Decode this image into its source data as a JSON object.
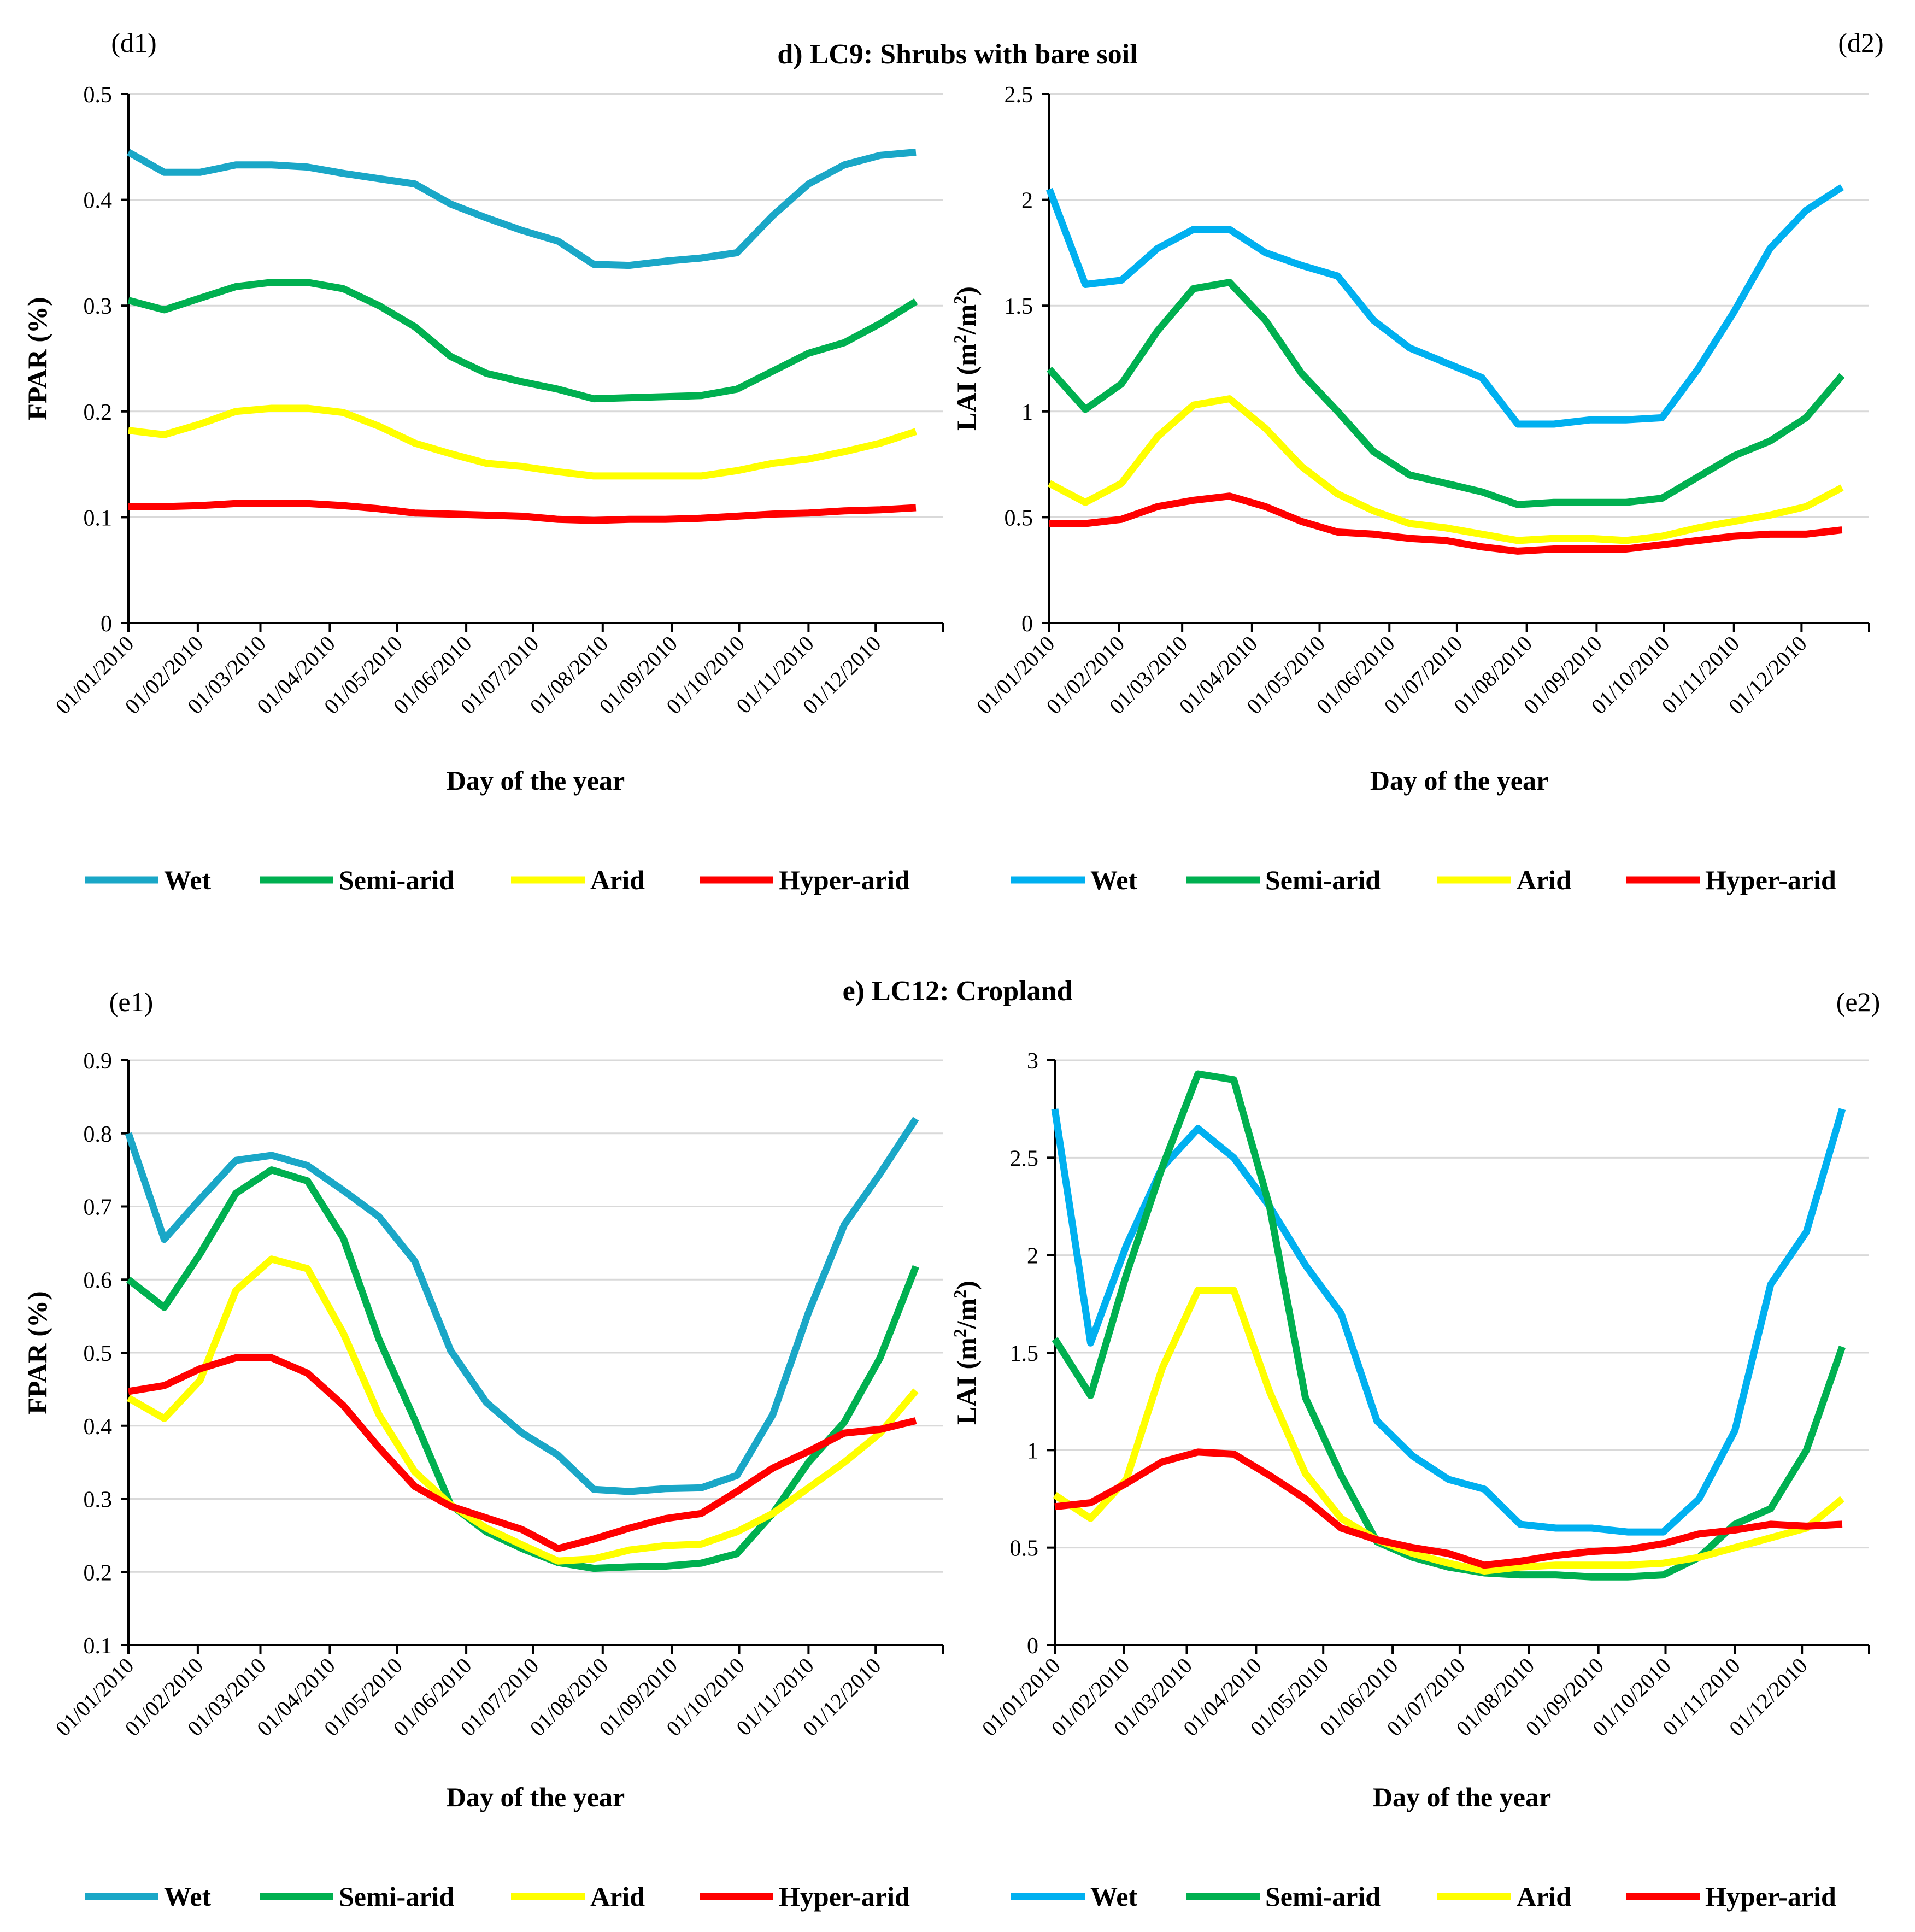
{
  "sections": [
    {
      "title": "d) LC9: Shrubs with bare soil"
    },
    {
      "title": "e) LC12: Cropland"
    }
  ],
  "legend_labels": [
    "Wet",
    "Semi-arid",
    "Arid",
    "Hyper-arid"
  ],
  "chart_data": [
    {
      "id": "d1",
      "panel_label": "(d1)",
      "type": "line",
      "xlabel": "Day of the year",
      "ylabel": "FPAR (%)",
      "ylim": [
        0,
        0.5
      ],
      "yticks": [
        0,
        0.1,
        0.2,
        0.3,
        0.4,
        0.5
      ],
      "ytick_labels": [
        "0",
        "0.1",
        "0.2",
        "0.3",
        "0.4",
        "0.5"
      ],
      "xtick_labels": [
        "01/01/2010",
        "01/02/2010",
        "01/03/2010",
        "01/04/2010",
        "01/05/2010",
        "01/06/2010",
        "01/07/2010",
        "01/08/2010",
        "01/09/2010",
        "01/10/2010",
        "01/11/2010",
        "01/12/2010"
      ],
      "xticks": [
        1,
        32,
        60,
        91,
        121,
        152,
        182,
        213,
        244,
        274,
        305,
        335
      ],
      "x": [
        1,
        17,
        33,
        49,
        65,
        81,
        97,
        113,
        129,
        145,
        161,
        177,
        193,
        209,
        225,
        241,
        257,
        273,
        289,
        305,
        321,
        337,
        353
      ],
      "grid": true,
      "series": [
        {
          "name": "Wet",
          "color": "#1aa7c7",
          "values": [
            0.445,
            0.426,
            0.426,
            0.433,
            0.433,
            0.431,
            0.425,
            0.42,
            0.415,
            0.396,
            0.383,
            0.371,
            0.361,
            0.339,
            0.338,
            0.342,
            0.345,
            0.35,
            0.385,
            0.415,
            0.433,
            0.442,
            0.445
          ]
        },
        {
          "name": "Semi-arid",
          "color": "#00b050",
          "values": [
            0.305,
            0.296,
            0.307,
            0.318,
            0.322,
            0.322,
            0.316,
            0.3,
            0.28,
            0.252,
            0.236,
            0.228,
            0.221,
            0.212,
            0.213,
            0.214,
            0.215,
            0.221,
            0.238,
            0.255,
            0.265,
            0.283,
            0.304
          ]
        },
        {
          "name": "Arid",
          "color": "#ffff00",
          "values": [
            0.182,
            0.178,
            0.188,
            0.2,
            0.203,
            0.203,
            0.199,
            0.186,
            0.17,
            0.16,
            0.151,
            0.148,
            0.143,
            0.139,
            0.139,
            0.139,
            0.139,
            0.144,
            0.151,
            0.155,
            0.162,
            0.17,
            0.181
          ]
        },
        {
          "name": "Hyper-arid",
          "color": "#ff0000",
          "values": [
            0.11,
            0.11,
            0.111,
            0.113,
            0.113,
            0.113,
            0.111,
            0.108,
            0.104,
            0.103,
            0.102,
            0.101,
            0.098,
            0.097,
            0.098,
            0.098,
            0.099,
            0.101,
            0.103,
            0.104,
            0.106,
            0.107,
            0.109
          ]
        }
      ]
    },
    {
      "id": "d2",
      "panel_label": "(d2)",
      "type": "line",
      "xlabel": "Day of the year",
      "ylabel_parts": [
        "LAI (m",
        "2",
        "/m",
        "2",
        ")"
      ],
      "ylim": [
        0,
        2.5
      ],
      "yticks": [
        0,
        0.5,
        1,
        1.5,
        2,
        2.5
      ],
      "ytick_labels": [
        "0",
        "0.5",
        "1",
        "1.5",
        "2",
        "2.5"
      ],
      "xtick_labels": [
        "01/01/2010",
        "01/02/2010",
        "01/03/2010",
        "01/04/2010",
        "01/05/2010",
        "01/06/2010",
        "01/07/2010",
        "01/08/2010",
        "01/09/2010",
        "01/10/2010",
        "01/11/2010",
        "01/12/2010"
      ],
      "xticks": [
        1,
        32,
        60,
        91,
        121,
        152,
        182,
        213,
        244,
        274,
        305,
        335
      ],
      "x": [
        1,
        17,
        33,
        49,
        65,
        81,
        97,
        113,
        129,
        145,
        161,
        177,
        193,
        209,
        225,
        241,
        257,
        273,
        289,
        305,
        321,
        337,
        353
      ],
      "grid": true,
      "series": [
        {
          "name": "Wet",
          "color": "#00b0f0",
          "values": [
            2.05,
            1.6,
            1.62,
            1.77,
            1.86,
            1.86,
            1.75,
            1.69,
            1.64,
            1.43,
            1.3,
            1.23,
            1.16,
            0.94,
            0.94,
            0.96,
            0.96,
            0.97,
            1.2,
            1.47,
            1.77,
            1.95,
            2.06
          ]
        },
        {
          "name": "Semi-arid",
          "color": "#00b050",
          "values": [
            1.2,
            1.01,
            1.13,
            1.38,
            1.58,
            1.61,
            1.43,
            1.18,
            1.0,
            0.81,
            0.7,
            0.66,
            0.62,
            0.56,
            0.57,
            0.57,
            0.57,
            0.59,
            0.69,
            0.79,
            0.86,
            0.97,
            1.17
          ]
        },
        {
          "name": "Arid",
          "color": "#ffff00",
          "values": [
            0.66,
            0.57,
            0.66,
            0.88,
            1.03,
            1.06,
            0.92,
            0.74,
            0.61,
            0.53,
            0.47,
            0.45,
            0.42,
            0.39,
            0.4,
            0.4,
            0.39,
            0.41,
            0.45,
            0.48,
            0.51,
            0.55,
            0.64
          ]
        },
        {
          "name": "Hyper-arid",
          "color": "#ff0000",
          "values": [
            0.47,
            0.47,
            0.49,
            0.55,
            0.58,
            0.6,
            0.55,
            0.48,
            0.43,
            0.42,
            0.4,
            0.39,
            0.36,
            0.34,
            0.35,
            0.35,
            0.35,
            0.37,
            0.39,
            0.41,
            0.42,
            0.42,
            0.44
          ]
        }
      ]
    },
    {
      "id": "e1",
      "panel_label": "(e1)",
      "type": "line",
      "xlabel": "Day of the year",
      "ylabel": "FPAR (%)",
      "ylim": [
        0.1,
        0.9
      ],
      "yticks": [
        0.1,
        0.2,
        0.3,
        0.4,
        0.5,
        0.6,
        0.7,
        0.8,
        0.9
      ],
      "ytick_labels": [
        "0.1",
        "0.2",
        "0.3",
        "0.4",
        "0.5",
        "0.6",
        "0.7",
        "0.8",
        "0.9"
      ],
      "xtick_labels": [
        "01/01/2010",
        "01/02/2010",
        "01/03/2010",
        "01/04/2010",
        "01/05/2010",
        "01/06/2010",
        "01/07/2010",
        "01/08/2010",
        "01/09/2010",
        "01/10/2010",
        "01/11/2010",
        "01/12/2010"
      ],
      "xticks": [
        1,
        32,
        60,
        91,
        121,
        152,
        182,
        213,
        244,
        274,
        305,
        335
      ],
      "x": [
        1,
        17,
        33,
        49,
        65,
        81,
        97,
        113,
        129,
        145,
        161,
        177,
        193,
        209,
        225,
        241,
        257,
        273,
        289,
        305,
        321,
        337,
        353
      ],
      "grid": true,
      "series": [
        {
          "name": "Wet",
          "color": "#1aa7c7",
          "values": [
            0.8,
            0.655,
            0.71,
            0.763,
            0.77,
            0.756,
            0.722,
            0.686,
            0.625,
            0.503,
            0.432,
            0.39,
            0.36,
            0.313,
            0.31,
            0.314,
            0.315,
            0.332,
            0.415,
            0.555,
            0.675,
            0.745,
            0.82
          ]
        },
        {
          "name": "Semi-arid",
          "color": "#00b050",
          "values": [
            0.6,
            0.562,
            0.635,
            0.718,
            0.75,
            0.735,
            0.657,
            0.518,
            0.408,
            0.292,
            0.255,
            0.232,
            0.213,
            0.205,
            0.207,
            0.208,
            0.212,
            0.225,
            0.28,
            0.35,
            0.405,
            0.493,
            0.618
          ]
        },
        {
          "name": "Arid",
          "color": "#ffff00",
          "values": [
            0.438,
            0.41,
            0.462,
            0.585,
            0.628,
            0.615,
            0.527,
            0.415,
            0.337,
            0.292,
            0.26,
            0.237,
            0.215,
            0.218,
            0.23,
            0.236,
            0.238,
            0.255,
            0.28,
            0.315,
            0.35,
            0.39,
            0.448
          ]
        },
        {
          "name": "Hyper-arid",
          "color": "#ff0000",
          "values": [
            0.447,
            0.455,
            0.478,
            0.493,
            0.493,
            0.472,
            0.428,
            0.37,
            0.317,
            0.29,
            0.274,
            0.258,
            0.232,
            0.245,
            0.26,
            0.273,
            0.28,
            0.31,
            0.342,
            0.365,
            0.39,
            0.395,
            0.407
          ]
        }
      ]
    },
    {
      "id": "e2",
      "panel_label": "(e2)",
      "type": "line",
      "xlabel": "Day of the year",
      "ylabel_parts": [
        "LAI (m",
        "2",
        "/m",
        "2",
        ")"
      ],
      "ylim": [
        0,
        3
      ],
      "yticks": [
        0,
        0.5,
        1,
        1.5,
        2,
        2.5,
        3
      ],
      "ytick_labels": [
        "0",
        "0.5",
        "1",
        "1.5",
        "2",
        "2.5",
        "3"
      ],
      "xtick_labels": [
        "01/01/2010",
        "01/02/2010",
        "01/03/2010",
        "01/04/2010",
        "01/05/2010",
        "01/06/2010",
        "01/07/2010",
        "01/08/2010",
        "01/09/2010",
        "01/10/2010",
        "01/11/2010",
        "01/12/2010"
      ],
      "xticks": [
        1,
        32,
        60,
        91,
        121,
        152,
        182,
        213,
        244,
        274,
        305,
        335
      ],
      "x": [
        1,
        17,
        33,
        49,
        65,
        81,
        97,
        113,
        129,
        145,
        161,
        177,
        193,
        209,
        225,
        241,
        257,
        273,
        289,
        305,
        321,
        337,
        353
      ],
      "grid": true,
      "series": [
        {
          "name": "Wet",
          "color": "#00b0f0",
          "values": [
            2.75,
            1.55,
            2.05,
            2.45,
            2.65,
            2.5,
            2.25,
            1.95,
            1.7,
            1.15,
            0.97,
            0.85,
            0.8,
            0.62,
            0.6,
            0.6,
            0.58,
            0.58,
            0.75,
            1.1,
            1.85,
            2.12,
            2.75
          ]
        },
        {
          "name": "Semi-arid",
          "color": "#00b050",
          "values": [
            1.57,
            1.28,
            1.9,
            2.45,
            2.93,
            2.9,
            2.25,
            1.27,
            0.87,
            0.53,
            0.45,
            0.4,
            0.37,
            0.36,
            0.36,
            0.35,
            0.35,
            0.36,
            0.45,
            0.62,
            0.7,
            1.0,
            1.53
          ]
        },
        {
          "name": "Arid",
          "color": "#ffff00",
          "values": [
            0.77,
            0.65,
            0.85,
            1.42,
            1.82,
            1.82,
            1.3,
            0.88,
            0.65,
            0.54,
            0.47,
            0.42,
            0.38,
            0.4,
            0.41,
            0.41,
            0.41,
            0.42,
            0.45,
            0.5,
            0.55,
            0.6,
            0.75
          ]
        },
        {
          "name": "Hyper-arid",
          "color": "#ff0000",
          "values": [
            0.71,
            0.73,
            0.83,
            0.94,
            0.99,
            0.98,
            0.87,
            0.75,
            0.6,
            0.54,
            0.5,
            0.47,
            0.41,
            0.43,
            0.46,
            0.48,
            0.49,
            0.52,
            0.57,
            0.59,
            0.62,
            0.61,
            0.62
          ]
        }
      ]
    }
  ]
}
